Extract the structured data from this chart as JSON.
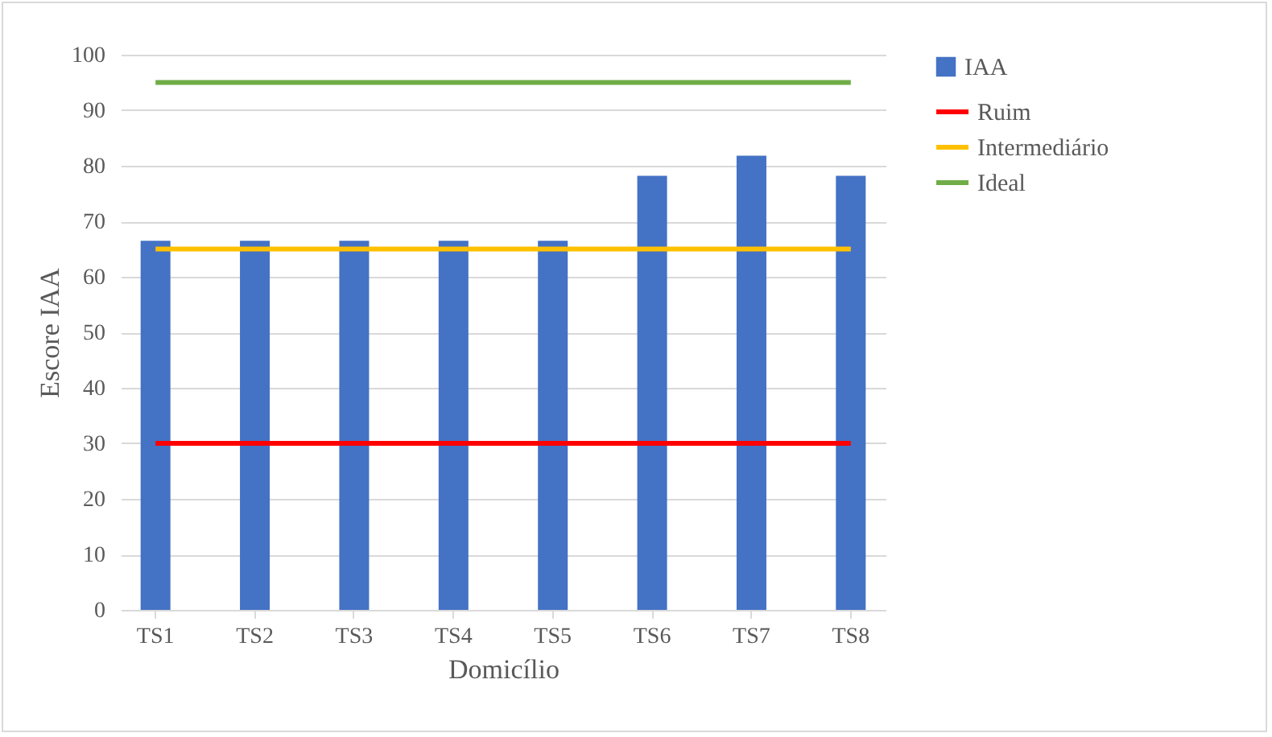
{
  "chart_data": {
    "type": "bar",
    "xlabel": "Domicílio",
    "ylabel": "Escore IAA",
    "categories": [
      "TS1",
      "TS2",
      "TS3",
      "TS4",
      "TS5",
      "TS6",
      "TS7",
      "TS8"
    ],
    "series": [
      {
        "name": "IAA",
        "color": "#4472c4",
        "values": [
          66.5,
          66.5,
          66.5,
          66.5,
          66.5,
          78.2,
          81.8,
          78.2
        ]
      },
      {
        "name": "Ruim",
        "type": "line",
        "color": "#ff0000",
        "values": [
          30,
          30,
          30,
          30,
          30,
          30,
          30,
          30
        ]
      },
      {
        "name": "Intermediário",
        "type": "line",
        "color": "#ffc000",
        "values": [
          65,
          65,
          65,
          65,
          65,
          65,
          65,
          65
        ]
      },
      {
        "name": "Ideal",
        "type": "line",
        "color": "#70ad47",
        "values": [
          95,
          95,
          95,
          95,
          95,
          95,
          95,
          95
        ]
      }
    ],
    "ylim": [
      0,
      100
    ],
    "yticks": [
      0,
      10,
      20,
      30,
      40,
      50,
      60,
      70,
      80,
      90,
      100
    ],
    "grid": "y",
    "legend": "right"
  }
}
